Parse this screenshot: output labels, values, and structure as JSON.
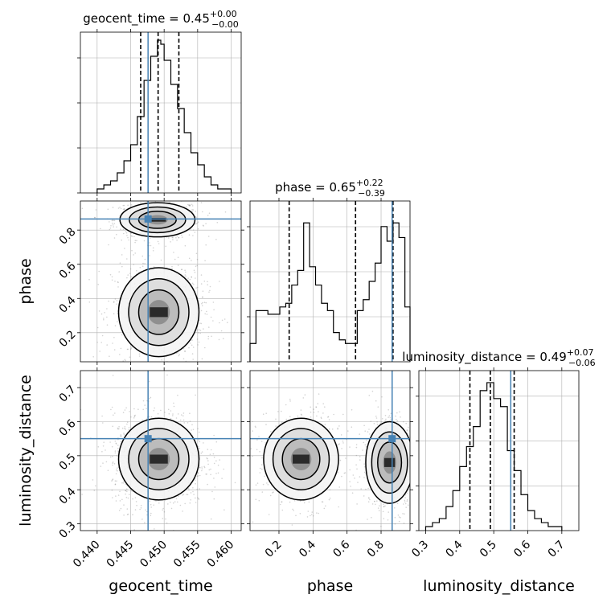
{
  "chart_data": [
    {
      "type": "histogram",
      "panel": "geocent_time-marginal",
      "title": {
        "main": "geocent_time = 0.45",
        "sup": "+0.00",
        "sub": "−0.00"
      },
      "xlim": [
        0.4375,
        0.4615
      ],
      "bin_edges": [
        0.44,
        0.441,
        0.442,
        0.443,
        0.444,
        0.445,
        0.446,
        0.447,
        0.448,
        0.449,
        0.4495,
        0.45,
        0.451,
        0.452,
        0.453,
        0.454,
        0.455,
        0.456,
        0.457,
        0.458,
        0.459,
        0.46
      ],
      "counts": [
        1,
        2,
        3,
        5,
        8,
        12,
        19,
        28,
        34,
        38,
        37,
        33,
        27,
        21,
        15,
        10,
        7,
        4,
        2,
        1,
        1
      ],
      "count_max": 40,
      "quantiles": [
        0.4465,
        0.4491,
        0.4522
      ],
      "truth": 0.4476
    },
    {
      "type": "histogram",
      "panel": "phase-marginal",
      "title": {
        "main": "phase = 0.65",
        "sup": "+0.22",
        "sub": "−0.39"
      },
      "xlim": [
        0.03,
        0.97
      ],
      "bin_edges": [
        0.03,
        0.065,
        0.1,
        0.135,
        0.17,
        0.205,
        0.24,
        0.275,
        0.31,
        0.345,
        0.38,
        0.415,
        0.45,
        0.485,
        0.52,
        0.555,
        0.59,
        0.625,
        0.66,
        0.695,
        0.73,
        0.765,
        0.8,
        0.835,
        0.87,
        0.905,
        0.94,
        0.97
      ],
      "counts": [
        5,
        14,
        14,
        13,
        13,
        15,
        16,
        21,
        25,
        38,
        26,
        21,
        16,
        14,
        8,
        6,
        5,
        5,
        14,
        17,
        22,
        27,
        37,
        33,
        38,
        34,
        15
      ],
      "count_max": 44,
      "quantiles": [
        0.26,
        0.65,
        0.87
      ],
      "truth": 0.865
    },
    {
      "type": "histogram",
      "panel": "luminosity_distance-marginal",
      "title": {
        "main": "luminosity_distance = 0.49",
        "sup": "+0.07",
        "sub": "−0.06"
      },
      "xlim": [
        0.28,
        0.75
      ],
      "bin_edges": [
        0.3,
        0.32,
        0.34,
        0.36,
        0.38,
        0.4,
        0.42,
        0.44,
        0.46,
        0.48,
        0.5,
        0.52,
        0.54,
        0.56,
        0.58,
        0.6,
        0.62,
        0.64,
        0.66,
        0.68,
        0.7
      ],
      "counts": [
        1,
        2,
        3,
        6,
        10,
        16,
        21,
        26,
        35,
        37,
        33,
        31,
        20,
        15,
        9,
        5,
        3,
        2,
        1,
        1
      ],
      "count_max": 40,
      "quantiles": [
        0.43,
        0.49,
        0.56
      ],
      "truth": 0.55
    },
    {
      "type": "scatter",
      "panel": "phase-vs-geocent_time",
      "xlim": [
        0.4375,
        0.4615
      ],
      "ylim": [
        0.03,
        0.97
      ],
      "truth": [
        0.4476,
        0.865
      ],
      "clusters": [
        {
          "cx": 0.449,
          "cy": 0.86,
          "sx": 0.0028,
          "sy": 0.05,
          "n": 700
        },
        {
          "cx": 0.4492,
          "cy": 0.32,
          "sx": 0.003,
          "sy": 0.13,
          "n": 900
        }
      ]
    },
    {
      "type": "scatter",
      "panel": "luminosity_distance-vs-geocent_time",
      "xlim": [
        0.4375,
        0.4615
      ],
      "ylim": [
        0.28,
        0.75
      ],
      "truth": [
        0.4476,
        0.55
      ],
      "clusters": [
        {
          "cx": 0.4492,
          "cy": 0.49,
          "sx": 0.003,
          "sy": 0.06,
          "n": 1400
        }
      ]
    },
    {
      "type": "scatter",
      "panel": "luminosity_distance-vs-phase",
      "xlim": [
        0.03,
        0.97
      ],
      "ylim": [
        0.28,
        0.75
      ],
      "truth": [
        0.865,
        0.55
      ],
      "clusters": [
        {
          "cx": 0.33,
          "cy": 0.49,
          "sx": 0.11,
          "sy": 0.06,
          "n": 650
        },
        {
          "cx": 0.85,
          "cy": 0.48,
          "sx": 0.07,
          "sy": 0.06,
          "n": 700
        }
      ]
    }
  ],
  "axes": {
    "geocent_time": {
      "label": "geocent_time",
      "ticks": [
        0.44,
        0.445,
        0.45,
        0.455,
        0.46
      ],
      "tick_labels": [
        "0.440",
        "0.445",
        "0.450",
        "0.455",
        "0.460"
      ]
    },
    "phase_x": {
      "label": "phase",
      "ticks": [
        0.2,
        0.4,
        0.6,
        0.8
      ],
      "tick_labels": [
        "0.2",
        "0.4",
        "0.6",
        "0.8"
      ]
    },
    "phase_y": {
      "label": "phase",
      "ticks": [
        0.2,
        0.4,
        0.6,
        0.8
      ],
      "tick_labels": [
        "0.2",
        "0.4",
        "0.6",
        "0.8"
      ]
    },
    "luminosity_distance_x": {
      "label": "luminosity_distance",
      "ticks": [
        0.3,
        0.4,
        0.5,
        0.6,
        0.7
      ],
      "tick_labels": [
        "0.3",
        "0.4",
        "0.5",
        "0.6",
        "0.7"
      ]
    },
    "luminosity_distance_y": {
      "label": "luminosity_distance",
      "ticks": [
        0.3,
        0.4,
        0.5,
        0.6,
        0.7
      ],
      "tick_labels": [
        "0.3",
        "0.4",
        "0.5",
        "0.6",
        "0.7"
      ]
    }
  },
  "style": {
    "truth_color": "#4682b4",
    "hist_color": "#000000",
    "grid_color": "#b0b0b0",
    "point_color": "#808080"
  }
}
